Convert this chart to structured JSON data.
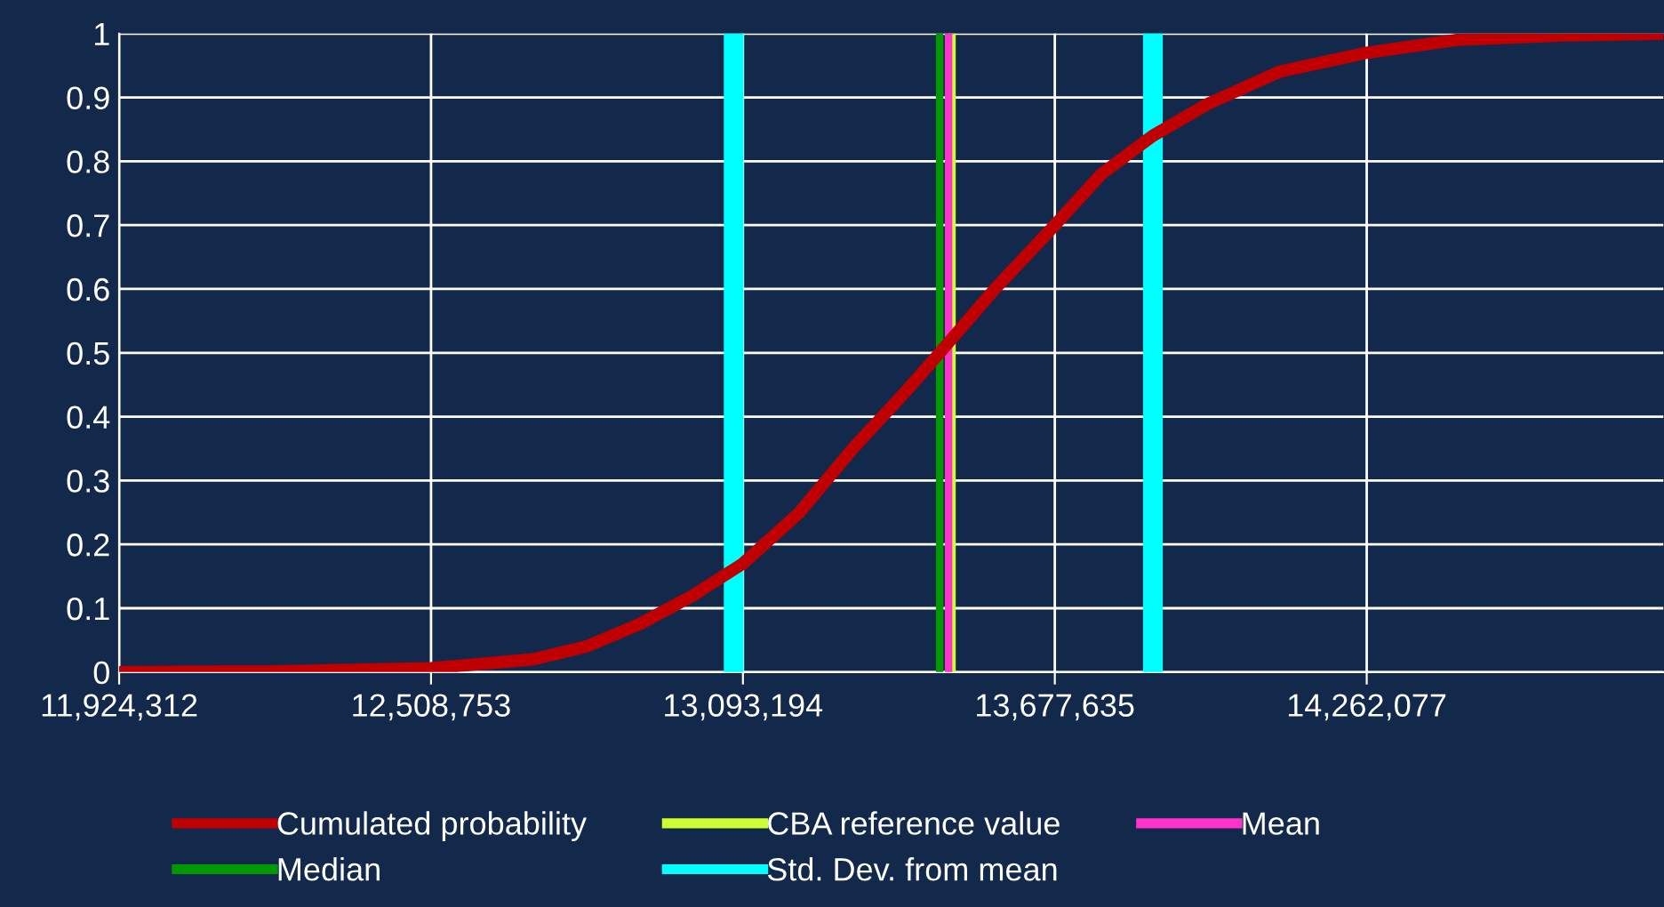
{
  "chart_data": {
    "type": "line",
    "x": [
      11924312,
      12200600,
      12508753,
      12699800,
      12799700,
      12899500,
      12999400,
      13093194,
      13199100,
      13299000,
      13398800,
      13461900,
      13565200,
      13677635,
      13764900,
      13861400,
      13964600,
      14097800,
      14262077,
      14430600,
      14630300,
      14817900
    ],
    "series": [
      {
        "name": "Cumulated probability",
        "color": "#c00000",
        "values": [
          0.0,
          0.001,
          0.006,
          0.02,
          0.04,
          0.075,
          0.12,
          0.17,
          0.25,
          0.35,
          0.44,
          0.5,
          0.6,
          0.7,
          0.78,
          0.84,
          0.89,
          0.94,
          0.97,
          0.99,
          0.997,
          1.0
        ]
      }
    ],
    "ref_lines": [
      {
        "axis": "x",
        "value": 13485000,
        "label": "CBA reference value",
        "color": "#ccff33"
      },
      {
        "axis": "x",
        "value": 13478600,
        "label": "Mean",
        "color": "#ff33cc"
      },
      {
        "axis": "x",
        "value": 13461900,
        "label": "Median",
        "color": "#009900"
      },
      {
        "axis": "x",
        "value": 13075900,
        "label": "Std. Dev. from mean",
        "color": "#00ffff"
      },
      {
        "axis": "x",
        "value": 13861400,
        "label": null,
        "color": "#00ffff"
      }
    ],
    "xlim": [
      11924312,
      14817900
    ],
    "xticks": [
      {
        "value": 11924312,
        "label": "11,924,312"
      },
      {
        "value": 12508753,
        "label": "12,508,753"
      },
      {
        "value": 13093194,
        "label": "13,093,194"
      },
      {
        "value": 13677635,
        "label": "13,677,635"
      },
      {
        "value": 14262077,
        "label": "14,262,077"
      }
    ],
    "ylim": [
      0,
      1
    ],
    "yticks": [
      {
        "value": 0,
        "label": "0"
      },
      {
        "value": 0.1,
        "label": "0.1"
      },
      {
        "value": 0.2,
        "label": "0.2"
      },
      {
        "value": 0.3,
        "label": "0.3"
      },
      {
        "value": 0.4,
        "label": "0.4"
      },
      {
        "value": 0.5,
        "label": "0.5"
      },
      {
        "value": 0.6,
        "label": "0.6"
      },
      {
        "value": 0.7,
        "label": "0.7"
      },
      {
        "value": 0.8,
        "label": "0.8"
      },
      {
        "value": 0.9,
        "label": "0.9"
      },
      {
        "value": 1,
        "label": "1"
      }
    ],
    "grid": true,
    "legend": "bottom",
    "marker": "none",
    "line_style": "solid"
  }
}
